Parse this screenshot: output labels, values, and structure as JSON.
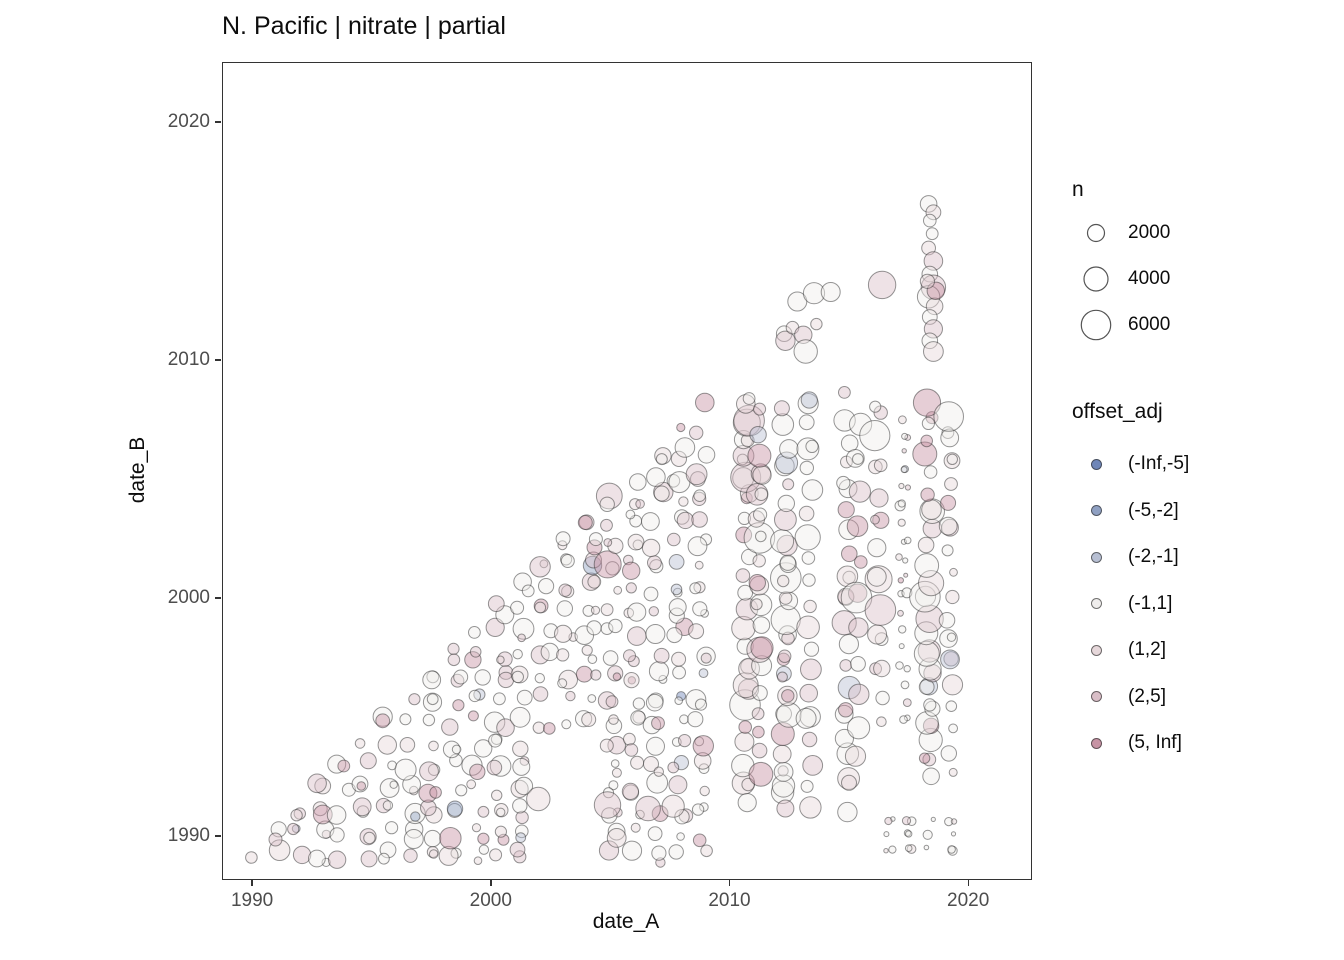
{
  "chart_data": {
    "type": "scatter",
    "title": "N. Pacific | nitrate | partial",
    "xlabel": "date_A",
    "ylabel": "date_B",
    "xlim": [
      1988.74,
      2022.59
    ],
    "ylim": [
      1988.24,
      2022.52
    ],
    "xticks": [
      1990,
      2000,
      2010,
      2020
    ],
    "yticks": [
      1990,
      2000,
      2010,
      2020
    ],
    "grid": false,
    "legend_position": "right",
    "size_legend": {
      "title": "n",
      "values": [
        2000,
        4000,
        6000
      ]
    },
    "color_legend": {
      "title": "offset_adj",
      "items": [
        {
          "label": "(-Inf,-5]",
          "color": "#6f86b8"
        },
        {
          "label": "(-5,-2]",
          "color": "#8fa0c2"
        },
        {
          "label": "(-2,-1]",
          "color": "#b7bfd3"
        },
        {
          "label": "(-1,1]",
          "color": "#efedec"
        },
        {
          "label": "(1,2]",
          "color": "#e6d7da"
        },
        {
          "label": "(2,5]",
          "color": "#d9bec7"
        },
        {
          "label": "(5, Inf]",
          "color": "#c793a4"
        }
      ]
    },
    "style": {
      "size_scale": 0.19,
      "fill_opacity": 0.45,
      "stroke": "#2d2d2d",
      "stroke_opacity": 0.5
    },
    "seed": 20170913,
    "cat_weights": [
      0.004,
      0.008,
      0.03,
      0.468,
      0.2,
      0.2,
      0.09
    ],
    "size_pools": {
      "s": [
        150,
        240,
        330,
        450,
        600
      ],
      "m": [
        500,
        800,
        1100,
        1500,
        2000,
        2600
      ],
      "l": [
        900,
        1400,
        2000,
        2800,
        3600
      ]
    },
    "regions": [
      {
        "kind": "grid",
        "x0": 1990.0,
        "x1": 2008.85,
        "xstep": 0.94,
        "y0": 1989.2,
        "y1": 2008.2,
        "ystep": 0.94,
        "diag_gap": 0.75,
        "jx": 0.55,
        "jy": 0.55,
        "extra": 0.55,
        "big_p": 0.05,
        "sizes": "m",
        "holes": [
          [
            2002.2,
            2004.45,
            1988.8,
            1994.2
          ]
        ]
      },
      {
        "kind": "band",
        "x": 2010.65,
        "y0": 1992.3,
        "y1": 2008.7,
        "ystep": 0.8,
        "jx": 0.3,
        "jy": 0.3,
        "extra": 0.5,
        "big_p": 0.12,
        "sizes": "l"
      },
      {
        "kind": "band",
        "x": 2011.2,
        "y0": 1992.6,
        "y1": 2008.5,
        "ystep": 0.9,
        "jx": 0.25,
        "jy": 0.3,
        "extra": 0.4,
        "big_p": 0.1,
        "sizes": "l"
      },
      {
        "kind": "band",
        "x": 2012.3,
        "y0": 1992.0,
        "y1": 2008.6,
        "ystep": 0.8,
        "jx": 0.3,
        "jy": 0.3,
        "extra": 0.5,
        "big_p": 0.12,
        "sizes": "l"
      },
      {
        "kind": "band",
        "x": 2013.3,
        "y0": 1992.2,
        "y1": 2008.4,
        "ystep": 0.95,
        "jx": 0.3,
        "jy": 0.3,
        "extra": 0.4,
        "big_p": 0.1,
        "sizes": "l"
      },
      {
        "kind": "band",
        "x": 2014.85,
        "y0": 1992.4,
        "y1": 2008.6,
        "ystep": 0.95,
        "jx": 0.3,
        "jy": 0.35,
        "extra": 0.4,
        "big_p": 0.15,
        "sizes": "l"
      },
      {
        "kind": "band",
        "x": 2015.35,
        "y0": 1993.2,
        "y1": 2007.6,
        "ystep": 1.4,
        "jx": 0.25,
        "jy": 0.4,
        "extra": 0.3,
        "big_p": 0.1,
        "sizes": "l"
      },
      {
        "kind": "band",
        "x": 2016.2,
        "y0": 1994.8,
        "y1": 2008.3,
        "ystep": 1.2,
        "jx": 0.35,
        "jy": 0.35,
        "extra": 0.35,
        "big_p": 0.08,
        "sizes": "m"
      },
      {
        "kind": "band",
        "x": 2017.25,
        "y0": 1994.9,
        "y1": 2008.2,
        "ystep": 0.75,
        "jx": 0.4,
        "jy": 0.25,
        "extra": 0.5,
        "big_p": 0.03,
        "sizes": "s"
      },
      {
        "kind": "band",
        "x": 2018.3,
        "y0": 1992.5,
        "y1": 2008.6,
        "ystep": 0.75,
        "jx": 0.35,
        "jy": 0.25,
        "extra": 0.6,
        "big_p": 0.1,
        "sizes": "l"
      },
      {
        "kind": "band",
        "x": 2019.2,
        "y0": 1992.6,
        "y1": 2007.8,
        "ystep": 0.95,
        "jx": 0.3,
        "jy": 0.3,
        "extra": 0.4,
        "big_p": 0.08,
        "sizes": "m"
      },
      {
        "kind": "band",
        "x": 2016.65,
        "y0": 1989.5,
        "y1": 1990.8,
        "ystep": 0.6,
        "jx": 0.3,
        "jy": 0.15,
        "extra": 0.5,
        "big_p": 0,
        "sizes": "s"
      },
      {
        "kind": "band",
        "x": 2017.45,
        "y0": 1989.5,
        "y1": 1990.8,
        "ystep": 0.6,
        "jx": 0.3,
        "jy": 0.15,
        "extra": 0.5,
        "big_p": 0,
        "sizes": "s"
      },
      {
        "kind": "band",
        "x": 2018.35,
        "y0": 1989.5,
        "y1": 1990.8,
        "ystep": 0.6,
        "jx": 0.3,
        "jy": 0.15,
        "extra": 0.5,
        "big_p": 0,
        "sizes": "s"
      },
      {
        "kind": "band",
        "x": 2019.25,
        "y0": 1989.5,
        "y1": 1990.8,
        "ystep": 0.6,
        "jx": 0.3,
        "jy": 0.15,
        "extra": 0.5,
        "big_p": 0,
        "sizes": "s"
      }
    ],
    "points": [
      [
        2012.25,
        2011.15,
        1700,
        3
      ],
      [
        2012.3,
        2010.85,
        2600,
        5
      ],
      [
        2012.6,
        2011.4,
        1100,
        4
      ],
      [
        2012.8,
        2012.5,
        2500,
        3
      ],
      [
        2013.05,
        2011.1,
        2100,
        5
      ],
      [
        2013.15,
        2010.4,
        3800,
        3
      ],
      [
        2013.5,
        2012.85,
        3100,
        3
      ],
      [
        2013.6,
        2011.55,
        900,
        4
      ],
      [
        2014.2,
        2012.9,
        2500,
        3
      ],
      [
        2016.35,
        2013.2,
        5200,
        5
      ],
      [
        2018.3,
        2016.6,
        1900,
        3
      ],
      [
        2018.5,
        2016.25,
        1500,
        4
      ],
      [
        2018.35,
        2015.9,
        1100,
        3
      ],
      [
        2018.45,
        2015.35,
        950,
        3
      ],
      [
        2018.3,
        2014.75,
        1300,
        4
      ],
      [
        2018.5,
        2014.2,
        2400,
        5
      ],
      [
        2018.35,
        2013.65,
        1700,
        3
      ],
      [
        2018.5,
        2013.1,
        4100,
        5
      ],
      [
        2018.3,
        2012.7,
        3500,
        3
      ],
      [
        2018.55,
        2012.3,
        1900,
        4
      ],
      [
        2018.35,
        2011.85,
        1500,
        3
      ],
      [
        2018.5,
        2011.35,
        2300,
        5
      ],
      [
        2018.35,
        2010.85,
        1700,
        3
      ],
      [
        2018.5,
        2010.4,
        2700,
        4
      ],
      [
        2018.6,
        2012.95,
        2100,
        6
      ],
      [
        2018.25,
        2013.35,
        1400,
        4
      ],
      [
        2004.85,
        1991.35,
        4800,
        5
      ],
      [
        2006.55,
        1991.2,
        4200,
        5
      ],
      [
        2007.6,
        1991.3,
        3400,
        4
      ],
      [
        2001.95,
        1991.6,
        3800,
        4
      ],
      [
        2013.35,
        1991.25,
        3200,
        4
      ],
      [
        2014.9,
        1991.05,
        2600,
        3
      ],
      [
        2010.7,
        1991.45,
        2300,
        3
      ],
      [
        2012.3,
        1991.2,
        2000,
        5
      ]
    ]
  }
}
